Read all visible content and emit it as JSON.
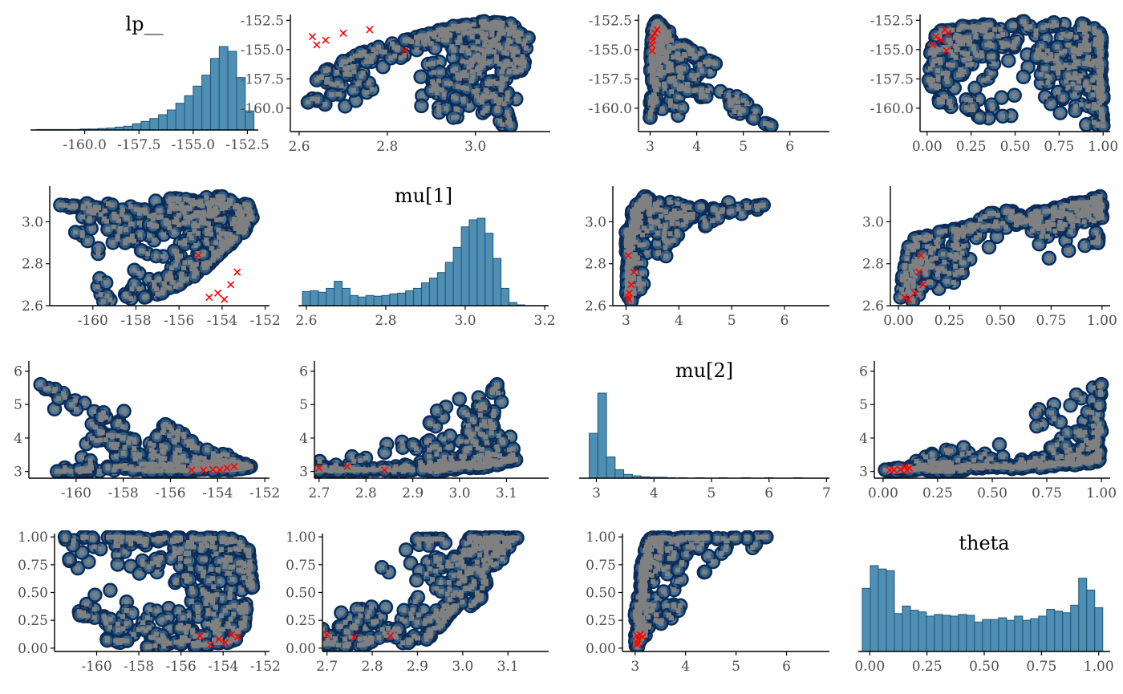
{
  "colors": {
    "hist_fill": "#4f8fb4",
    "hist_stroke": "#1e5778",
    "draw_fill": "#808080",
    "draw_edge": "#0c2c57",
    "divergent": "#ff0000",
    "axis": "#000000"
  },
  "chart_data": {
    "type": "scatter",
    "layout": "pairs",
    "parameters": [
      "lp__",
      "mu[1]",
      "mu[2]",
      "theta"
    ],
    "diagonal": [
      {
        "title": "lp__",
        "type": "bar",
        "xlim": [
          -162.5,
          -152
        ],
        "xticks": [
          "-160.0",
          "-157.5",
          "-155.0",
          "-152.5"
        ],
        "bins": [
          -162.0,
          -161.6,
          -161.2,
          -160.8,
          -160.4,
          -160.0,
          -159.6,
          -159.2,
          -158.8,
          -158.4,
          -158.0,
          -157.6,
          -157.2,
          -156.8,
          -156.4,
          -156.0,
          -155.6,
          -155.2,
          -154.8,
          -154.4,
          -154.0,
          -153.6,
          -153.2,
          -152.8,
          -152.4
        ],
        "counts": [
          1,
          1,
          1,
          1,
          1,
          2,
          2,
          3,
          4,
          6,
          8,
          13,
          18,
          24,
          32,
          42,
          56,
          72,
          92,
          115,
          150,
          175,
          165,
          110,
          40
        ]
      },
      {
        "title": "mu[1]",
        "type": "bar",
        "xlim": [
          2.58,
          3.21
        ],
        "xticks": [
          "2.6",
          "2.8",
          "3.0",
          "3.2"
        ],
        "bins": [
          2.6,
          2.62,
          2.64,
          2.66,
          2.68,
          2.7,
          2.72,
          2.74,
          2.76,
          2.78,
          2.8,
          2.82,
          2.84,
          2.86,
          2.88,
          2.9,
          2.92,
          2.94,
          2.96,
          2.98,
          3.0,
          3.02,
          3.04,
          3.06,
          3.08,
          3.1,
          3.12,
          3.14
        ],
        "counts": [
          36,
          38,
          34,
          44,
          62,
          44,
          26,
          22,
          26,
          24,
          26,
          30,
          32,
          38,
          44,
          58,
          70,
          84,
          110,
          148,
          200,
          218,
          222,
          184,
          120,
          44,
          8,
          2
        ]
      },
      {
        "title": "mu[2]",
        "type": "bar",
        "xlim": [
          2.7,
          7.05
        ],
        "xticks": [
          "3",
          "4",
          "5",
          "6",
          "7"
        ],
        "bins": [
          2.95,
          3.1,
          3.25,
          3.4,
          3.55,
          3.7,
          3.85,
          4.0,
          4.15,
          4.3,
          4.5,
          4.8,
          5.2,
          5.6,
          6.0,
          6.5
        ],
        "counts": [
          95,
          180,
          45,
          18,
          8,
          5,
          3,
          2,
          2,
          1,
          1,
          1,
          1,
          1,
          1,
          1
        ]
      },
      {
        "title": "theta",
        "type": "bar",
        "xlim": [
          -0.05,
          1.05
        ],
        "xticks": [
          "0.00",
          "0.25",
          "0.50",
          "0.75",
          "1.00"
        ],
        "bins": [
          -0.015,
          0.02,
          0.055,
          0.09,
          0.125,
          0.16,
          0.195,
          0.23,
          0.265,
          0.3,
          0.335,
          0.37,
          0.405,
          0.44,
          0.475,
          0.51,
          0.545,
          0.58,
          0.615,
          0.65,
          0.685,
          0.72,
          0.755,
          0.79,
          0.825,
          0.86,
          0.895,
          0.93,
          0.965,
          1.0
        ],
        "counts": [
          75,
          102,
          98,
          96,
          45,
          54,
          49,
          47,
          42,
          44,
          43,
          42,
          44,
          43,
          35,
          38,
          38,
          40,
          37,
          42,
          37,
          39,
          42,
          50,
          48,
          46,
          55,
          87,
          73,
          52
        ]
      }
    ],
    "axes": [
      {
        "name": "lp__",
        "xlim": [
          -162,
          -151.8
        ],
        "xticks": [
          -160,
          -158,
          -156,
          -154,
          -152
        ],
        "xtick_labels": [
          "-160",
          "-158",
          "-156",
          "-154",
          "-152"
        ],
        "ylim": [
          -162,
          -152
        ],
        "yticks": [
          -160.0,
          -157.5,
          -155.0,
          -152.5
        ],
        "ytick_labels": [
          "-160.0",
          "-157.5",
          "-155.0",
          "-152.5"
        ]
      },
      {
        "name": "mu[1]",
        "xlim": [
          2.58,
          3.17
        ],
        "xticks": [
          2.6,
          2.8,
          3.0
        ],
        "xtick_labels": [
          "2.6",
          "2.8",
          "3.0"
        ],
        "xlim_alt": [
          2.69,
          3.19
        ],
        "xticks_alt": [
          2.7,
          2.8,
          2.9,
          3.0,
          3.1
        ],
        "xtick_labels_alt": [
          "2.7",
          "2.8",
          "2.9",
          "3.0",
          "3.1"
        ],
        "ylim": [
          2.6,
          3.17
        ],
        "yticks": [
          2.6,
          2.8,
          3.0
        ],
        "ytick_labels": [
          "2.6",
          "2.8",
          "3.0"
        ],
        "ylim_alt": [
          2.68,
          3.19
        ],
        "yticks_alt": [
          2.7,
          2.8,
          2.9,
          3.0,
          3.1
        ],
        "ytick_labels_alt": [
          "2.7",
          "2.8",
          "2.9",
          "3.0",
          "3.1"
        ]
      },
      {
        "name": "mu[2]",
        "xlim": [
          2.75,
          6.85
        ],
        "xticks": [
          3,
          4,
          5,
          6
        ],
        "xtick_labels": [
          "3",
          "4",
          "5",
          "6"
        ],
        "ylim": [
          2.8,
          6.3
        ],
        "yticks": [
          3,
          4,
          5,
          6
        ],
        "ytick_labels": [
          "3",
          "4",
          "5",
          "6"
        ]
      },
      {
        "name": "theta",
        "xlim": [
          -0.04,
          1.04
        ],
        "xticks": [
          0,
          0.25,
          0.5,
          0.75,
          1.0
        ],
        "xtick_labels": [
          "0.00",
          "0.25",
          "0.50",
          "0.75",
          "1.00"
        ],
        "ylim": [
          -0.03,
          1.03
        ],
        "yticks": [
          0,
          0.25,
          0.5,
          0.75,
          1.0
        ],
        "ytick_labels": [
          "0.00",
          "0.25",
          "0.50",
          "0.75",
          "1.00"
        ]
      }
    ],
    "series": [
      {
        "name": "",
        "parameters": [
          "lp__",
          "mu[1]",
          "mu[2]",
          "theta"
        ],
        "kind": "draws",
        "points": [
          [
            -152.6,
            3.02,
            3.15,
            0.55
          ],
          [
            -152.7,
            3.05,
            3.12,
            0.72
          ],
          [
            -152.8,
            3.08,
            3.2,
            0.88
          ],
          [
            -152.9,
            2.98,
            3.1,
            0.35
          ],
          [
            -153.0,
            2.95,
            3.08,
            0.2
          ],
          [
            -153.2,
            3.06,
            3.25,
            0.95
          ],
          [
            -153.4,
            2.92,
            3.05,
            0.08
          ],
          [
            -153.6,
            3.1,
            3.3,
            0.98
          ],
          [
            -153.8,
            2.88,
            3.07,
            0.05
          ],
          [
            -154.0,
            3.12,
            3.35,
            0.99
          ],
          [
            -154.2,
            2.84,
            3.04,
            0.12
          ],
          [
            -154.5,
            3.04,
            3.18,
            0.45
          ],
          [
            -154.8,
            2.78,
            3.06,
            0.03
          ],
          [
            -155.0,
            3.09,
            3.28,
            0.9
          ],
          [
            -155.3,
            2.74,
            3.02,
            0.02
          ],
          [
            -155.6,
            3.0,
            3.14,
            0.62
          ],
          [
            -156.0,
            2.7,
            3.03,
            0.04
          ],
          [
            -156.4,
            3.11,
            3.4,
            0.97
          ],
          [
            -156.8,
            2.66,
            3.01,
            0.06
          ],
          [
            -157.2,
            2.98,
            3.22,
            0.8
          ],
          [
            -157.6,
            2.64,
            3.05,
            0.01
          ],
          [
            -158.0,
            3.06,
            3.55,
            0.99
          ],
          [
            -158.5,
            2.9,
            3.8,
            0.98
          ],
          [
            -159.0,
            3.02,
            4.2,
            1.0
          ],
          [
            -159.5,
            2.62,
            3.1,
            0.07
          ],
          [
            -160.2,
            3.05,
            5.0,
            0.99
          ],
          [
            -160.8,
            2.95,
            3.0,
            0.3
          ],
          [
            -161.5,
            3.08,
            5.6,
            1.0
          ],
          [
            -156.2,
            3.07,
            4.4,
            0.99
          ],
          [
            -155.1,
            3.03,
            3.9,
            0.98
          ]
        ]
      },
      {
        "name": "",
        "parameters": [
          "lp__",
          "mu[1]",
          "mu[2]",
          "theta"
        ],
        "kind": "divergent",
        "points": [
          [
            -153.9,
            2.63,
            3.05,
            0.05
          ],
          [
            -154.2,
            2.66,
            3.06,
            0.08
          ],
          [
            -153.6,
            2.7,
            3.1,
            0.12
          ],
          [
            -154.6,
            2.64,
            3.04,
            0.03
          ],
          [
            -155.1,
            2.84,
            3.04,
            0.11
          ],
          [
            -153.3,
            2.76,
            3.15,
            0.1
          ]
        ]
      }
    ]
  }
}
